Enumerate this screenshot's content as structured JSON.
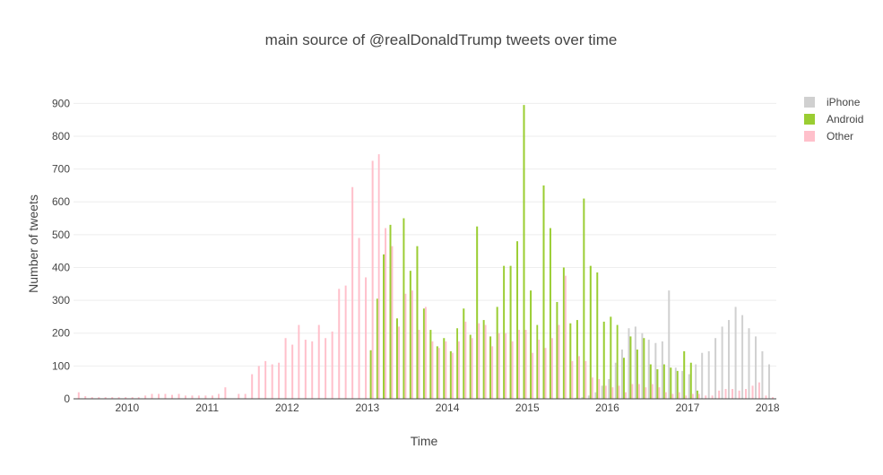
{
  "chart_data": {
    "type": "bar",
    "title": "main source of @realDonaldTrump tweets over time",
    "xlabel": "Time",
    "ylabel": "Number of tweets",
    "ylim": [
      0,
      950
    ],
    "yticks": [
      0,
      100,
      200,
      300,
      400,
      500,
      600,
      700,
      800,
      900
    ],
    "x_range": [
      "2009-05-01",
      "2018-02-10"
    ],
    "xticks": [
      {
        "label": "2010",
        "date": "2010-01-01"
      },
      {
        "label": "2011",
        "date": "2011-01-01"
      },
      {
        "label": "2012",
        "date": "2012-01-01"
      },
      {
        "label": "2013",
        "date": "2013-01-01"
      },
      {
        "label": "2014",
        "date": "2014-01-01"
      },
      {
        "label": "2015",
        "date": "2015-01-01"
      },
      {
        "label": "2016",
        "date": "2016-01-01"
      },
      {
        "label": "2017",
        "date": "2017-01-01"
      },
      {
        "label": "2018",
        "date": "2018-01-01"
      }
    ],
    "grid": true,
    "legend_position": "top-right",
    "barmode": "group",
    "x": [
      "2009-05",
      "2009-06",
      "2009-07",
      "2009-08",
      "2009-09",
      "2009-10",
      "2009-11",
      "2009-12",
      "2010-01",
      "2010-02",
      "2010-03",
      "2010-04",
      "2010-05",
      "2010-06",
      "2010-07",
      "2010-08",
      "2010-09",
      "2010-10",
      "2010-11",
      "2010-12",
      "2011-01",
      "2011-02",
      "2011-03",
      "2011-04",
      "2011-05",
      "2011-06",
      "2011-07",
      "2011-08",
      "2011-09",
      "2011-10",
      "2011-11",
      "2011-12",
      "2012-01",
      "2012-02",
      "2012-03",
      "2012-04",
      "2012-05",
      "2012-06",
      "2012-07",
      "2012-08",
      "2012-09",
      "2012-10",
      "2012-11",
      "2012-12",
      "2013-01",
      "2013-02",
      "2013-03",
      "2013-04",
      "2013-05",
      "2013-06",
      "2013-07",
      "2013-08",
      "2013-09",
      "2013-10",
      "2013-11",
      "2013-12",
      "2014-01",
      "2014-02",
      "2014-03",
      "2014-04",
      "2014-05",
      "2014-06",
      "2014-07",
      "2014-08",
      "2014-09",
      "2014-10",
      "2014-11",
      "2014-12",
      "2015-01",
      "2015-02",
      "2015-03",
      "2015-04",
      "2015-05",
      "2015-06",
      "2015-07",
      "2015-08",
      "2015-09",
      "2015-10",
      "2015-11",
      "2015-12",
      "2016-01",
      "2016-02",
      "2016-03",
      "2016-04",
      "2016-05",
      "2016-06",
      "2016-07",
      "2016-08",
      "2016-09",
      "2016-10",
      "2016-11",
      "2016-12",
      "2017-01",
      "2017-02",
      "2017-03",
      "2017-04",
      "2017-05",
      "2017-06",
      "2017-07",
      "2017-08",
      "2017-09",
      "2017-10",
      "2017-11",
      "2017-12",
      "2018-01"
    ],
    "series": [
      {
        "name": "iPhone",
        "color": "#d0d0d0",
        "values": [
          0,
          0,
          0,
          0,
          0,
          0,
          0,
          0,
          0,
          0,
          0,
          0,
          0,
          0,
          0,
          0,
          0,
          0,
          0,
          0,
          0,
          0,
          0,
          0,
          0,
          0,
          0,
          0,
          0,
          0,
          0,
          0,
          0,
          0,
          0,
          0,
          0,
          0,
          0,
          0,
          0,
          0,
          0,
          0,
          0,
          0,
          0,
          0,
          0,
          0,
          0,
          0,
          0,
          0,
          0,
          0,
          0,
          0,
          0,
          0,
          0,
          0,
          0,
          0,
          0,
          0,
          0,
          0,
          0,
          0,
          0,
          0,
          0,
          0,
          0,
          3,
          5,
          10,
          20,
          40,
          60,
          110,
          150,
          215,
          220,
          200,
          180,
          170,
          175,
          330,
          95,
          85,
          75,
          105,
          140,
          145,
          185,
          220,
          240,
          280,
          255,
          215,
          190,
          145,
          105
        ]
      },
      {
        "name": "Android",
        "color": "#9acd32",
        "values": [
          0,
          0,
          0,
          0,
          0,
          0,
          0,
          0,
          0,
          0,
          0,
          0,
          0,
          0,
          0,
          0,
          0,
          0,
          0,
          0,
          0,
          0,
          0,
          0,
          0,
          0,
          0,
          0,
          0,
          0,
          0,
          0,
          0,
          0,
          0,
          0,
          0,
          0,
          0,
          0,
          0,
          0,
          0,
          0,
          148,
          305,
          440,
          530,
          245,
          550,
          390,
          465,
          275,
          210,
          160,
          185,
          145,
          215,
          275,
          195,
          525,
          240,
          190,
          280,
          405,
          405,
          480,
          895,
          330,
          225,
          650,
          520,
          295,
          400,
          230,
          240,
          610,
          405,
          385,
          235,
          250,
          225,
          125,
          190,
          150,
          185,
          105,
          90,
          105,
          95,
          85,
          145,
          110,
          25,
          0,
          0,
          0,
          0,
          0,
          0,
          0,
          0,
          0,
          0,
          0
        ]
      },
      {
        "name": "Other",
        "color": "#ffc0cb",
        "values": [
          20,
          8,
          5,
          5,
          5,
          5,
          5,
          5,
          5,
          5,
          10,
          15,
          15,
          15,
          12,
          15,
          10,
          10,
          10,
          10,
          10,
          15,
          35,
          0,
          15,
          15,
          75,
          100,
          115,
          105,
          110,
          185,
          165,
          225,
          180,
          175,
          225,
          185,
          205,
          335,
          345,
          645,
          490,
          370,
          725,
          745,
          520,
          465,
          220,
          320,
          330,
          210,
          280,
          175,
          155,
          175,
          140,
          175,
          235,
          185,
          230,
          225,
          160,
          200,
          200,
          175,
          210,
          210,
          140,
          180,
          155,
          185,
          225,
          375,
          115,
          130,
          115,
          65,
          60,
          40,
          35,
          40,
          20,
          45,
          45,
          35,
          45,
          35,
          20,
          15,
          20,
          10,
          15,
          15,
          10,
          10,
          25,
          30,
          30,
          25,
          30,
          40,
          50,
          10,
          5
        ]
      }
    ]
  }
}
